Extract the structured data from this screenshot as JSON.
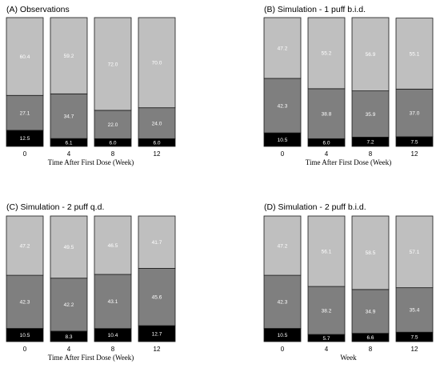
{
  "chart_data": [
    {
      "type": "bar",
      "stacked": true,
      "title": "(A) Observations",
      "xlabel": "Time After First Dose (Week)",
      "ylabel": "",
      "categories": [
        "0",
        "4",
        "8",
        "12"
      ],
      "ylim": [
        0,
        100
      ],
      "series": [
        {
          "color": "#000000",
          "values": [
            12.5,
            6.1,
            6.0,
            6.0
          ]
        },
        {
          "color": "#7f7f7f",
          "values": [
            27.1,
            34.7,
            22.0,
            24.0
          ]
        },
        {
          "color": "#bfbfbf",
          "values": [
            60.4,
            59.2,
            72.0,
            70.0
          ]
        }
      ]
    },
    {
      "type": "bar",
      "stacked": true,
      "title": "(B) Simulation - 1 puff b.i.d.",
      "xlabel": "Time After First Dose (Week)",
      "ylabel": "",
      "categories": [
        "0",
        "4",
        "8",
        "12"
      ],
      "ylim": [
        0,
        100
      ],
      "series": [
        {
          "color": "#000000",
          "values": [
            10.5,
            6.0,
            7.2,
            7.5
          ]
        },
        {
          "color": "#7f7f7f",
          "values": [
            42.3,
            38.8,
            35.9,
            37.0
          ]
        },
        {
          "color": "#bfbfbf",
          "values": [
            47.2,
            55.2,
            56.9,
            55.1
          ]
        }
      ]
    },
    {
      "type": "bar",
      "stacked": true,
      "title": "(C) Simulation - 2 puff q.d.",
      "xlabel": "Time After First Dose (Week)",
      "ylabel": "",
      "categories": [
        "0",
        "4",
        "8",
        "12"
      ],
      "ylim": [
        0,
        100
      ],
      "series": [
        {
          "color": "#000000",
          "values": [
            10.5,
            8.3,
            10.4,
            12.7
          ]
        },
        {
          "color": "#7f7f7f",
          "values": [
            42.3,
            42.2,
            43.1,
            45.6
          ]
        },
        {
          "color": "#bfbfbf",
          "values": [
            47.2,
            49.5,
            46.5,
            41.7
          ]
        }
      ]
    },
    {
      "type": "bar",
      "stacked": true,
      "title": "(D) Simulation - 2 puff b.i.d.",
      "xlabel": "Week",
      "ylabel": "",
      "categories": [
        "0",
        "4",
        "8",
        "12"
      ],
      "ylim": [
        0,
        100
      ],
      "series": [
        {
          "color": "#000000",
          "values": [
            10.5,
            5.7,
            6.6,
            7.5
          ]
        },
        {
          "color": "#7f7f7f",
          "values": [
            42.3,
            38.2,
            34.9,
            35.4
          ]
        },
        {
          "color": "#bfbfbf",
          "values": [
            47.2,
            56.1,
            58.5,
            57.1
          ]
        }
      ]
    }
  ]
}
